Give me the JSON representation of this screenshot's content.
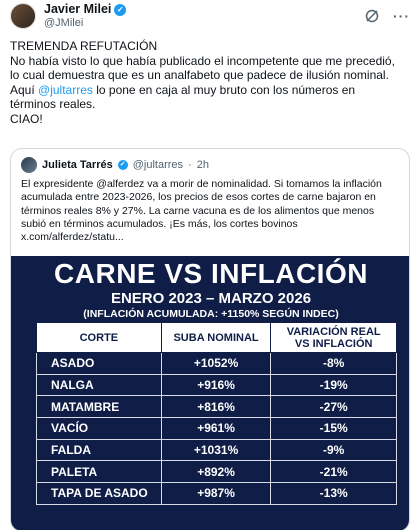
{
  "author": {
    "name": "Javier Milei",
    "handle": "@JMilei",
    "verified_icon": "verified-badge-icon"
  },
  "post": {
    "line1": "TREMENDA REFUTACIÓN",
    "line2": "No había visto lo que había publicado el incompetente que me precedió,",
    "line3": "lo cual demuestra que es un analfabeto que padece de ilusión nominal.",
    "line4_pre": "Aquí ",
    "line4_mention": "@jultarres",
    "line4_post": " lo pone en caja al muy bruto con los números en",
    "line5": "términos reales.",
    "line6": "CIAO!"
  },
  "quote": {
    "name": "Julieta Tarrés",
    "handle": "@jultarres",
    "time": "2h",
    "text_lines": [
      "El expresidente @alferdez va a morir de nominalidad. Si tomamos la inflación",
      "acumulada entre 2023-2026, los precios de esos cortes de carne bajaron en",
      "términos reales 8% y 27%. La carne vacuna es de los alimentos que menos",
      "subió en términos acumulados. ¡Es más, los cortes bovinos",
      "x.com/alferdez/statu..."
    ]
  },
  "infographic": {
    "title": "CARNE VS INFLACIÓN",
    "subtitle": "ENERO 2023 – MARZO 2026",
    "note": "(INFLACIÓN ACUMULADA: +1150% SEGÚN INDEC)",
    "columns": [
      "CORTE",
      "SUBA NOMINAL",
      "VARIACIÓN REAL VS INFLACIÓN"
    ],
    "column3_line1": "VARIACIÓN REAL",
    "column3_line2": "VS INFLACIÓN",
    "rows": [
      {
        "corte": "ASADO",
        "nominal": "+1052%",
        "real": "-8%"
      },
      {
        "corte": "NALGA",
        "nominal": "+916%",
        "real": "-19%"
      },
      {
        "corte": "MATAMBRE",
        "nominal": "+816%",
        "real": "-27%"
      },
      {
        "corte": "VACÍO",
        "nominal": "+961%",
        "real": "-15%"
      },
      {
        "corte": "FALDA",
        "nominal": "+1031%",
        "real": "-9%"
      },
      {
        "corte": "PALETA",
        "nominal": "+892%",
        "real": "-21%"
      },
      {
        "corte": "TAPA DE ASADO",
        "nominal": "+987%",
        "real": "-13%"
      }
    ],
    "colors": {
      "background": "#0f1d47",
      "header_bg": "#ffffff",
      "text": "#ffffff"
    }
  },
  "icons": {
    "grok": "grok-icon",
    "more": "more-options-icon"
  }
}
